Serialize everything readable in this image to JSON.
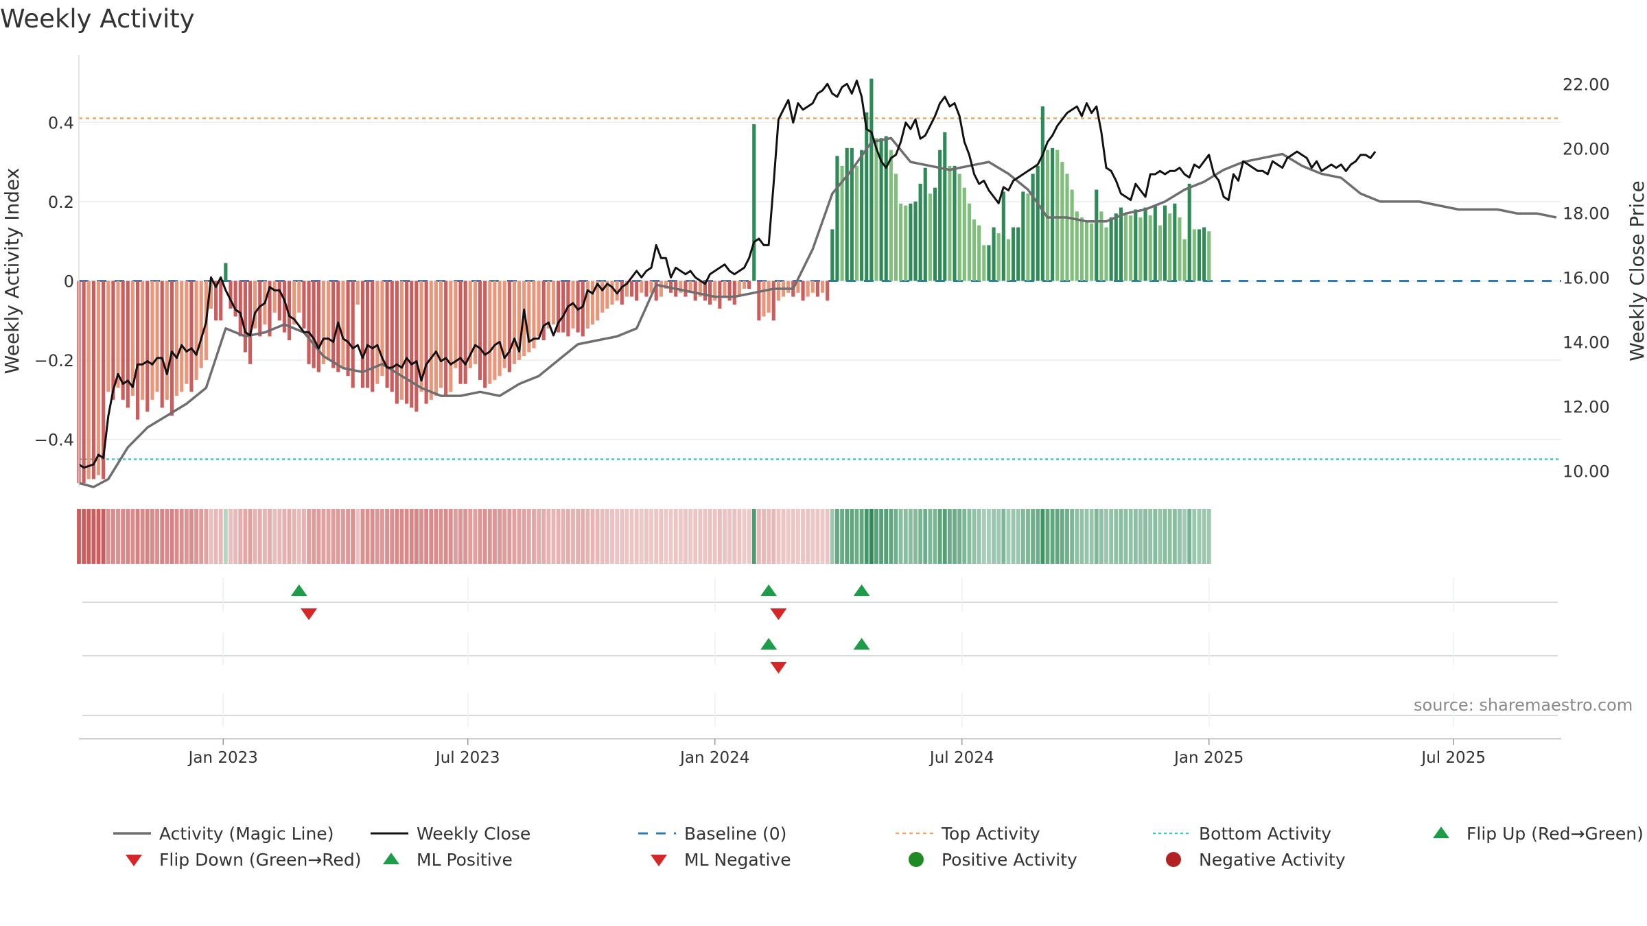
{
  "chart_data": {
    "type": "bar",
    "title": "Weekly Activity",
    "ylabel_left": "Weekly Activity Index",
    "ylabel_right": "Weekly Close Price",
    "ylim_left": [
      -0.52,
      0.57
    ],
    "ylim_right": [
      9.5,
      22.9
    ],
    "left_ticks": [
      {
        "value": 0.4,
        "label": "0.4"
      },
      {
        "value": 0.2,
        "label": "0.2"
      },
      {
        "value": 0,
        "label": "0"
      },
      {
        "value": -0.2,
        "label": "−0.2"
      },
      {
        "value": -0.4,
        "label": "−0.4"
      }
    ],
    "right_ticks": [
      {
        "value": 22,
        "label": "22.00"
      },
      {
        "value": 20,
        "label": "20.00"
      },
      {
        "value": 18,
        "label": "18.00"
      },
      {
        "value": 16,
        "label": "16.00"
      },
      {
        "value": 14,
        "label": "14.00"
      },
      {
        "value": 12,
        "label": "12.00"
      },
      {
        "value": 10,
        "label": "10.00"
      }
    ],
    "x_ticks": [
      {
        "week": 29.5,
        "label": "Jan 2023"
      },
      {
        "week": 79.5,
        "label": "Jul 2023"
      },
      {
        "week": 130,
        "label": "Jan 2024"
      },
      {
        "week": 180.5,
        "label": "Jul 2024"
      },
      {
        "week": 231,
        "label": "Jan 2025"
      },
      {
        "week": 281,
        "label": "Jul 2025"
      }
    ],
    "x_range_weeks": [
      0,
      303
    ],
    "top_activity": 0.41,
    "bottom_activity": -0.45,
    "activity": [
      -0.51,
      -0.51,
      -0.5,
      -0.5,
      -0.49,
      -0.5,
      -0.28,
      -0.3,
      -0.27,
      -0.3,
      -0.32,
      -0.29,
      -0.35,
      -0.3,
      -0.33,
      -0.3,
      -0.28,
      -0.32,
      -0.3,
      -0.34,
      -0.29,
      -0.28,
      -0.26,
      -0.28,
      -0.25,
      -0.22,
      -0.2,
      -0.07,
      -0.1,
      -0.1,
      0.045,
      -0.07,
      -0.09,
      -0.14,
      -0.18,
      -0.21,
      -0.12,
      -0.14,
      -0.11,
      -0.14,
      -0.08,
      -0.1,
      -0.13,
      -0.15,
      -0.11,
      -0.08,
      -0.12,
      -0.21,
      -0.22,
      -0.23,
      -0.21,
      -0.2,
      -0.22,
      -0.23,
      -0.22,
      -0.24,
      -0.27,
      -0.06,
      -0.27,
      -0.27,
      -0.28,
      -0.26,
      -0.24,
      -0.27,
      -0.28,
      -0.31,
      -0.3,
      -0.31,
      -0.32,
      -0.33,
      -0.28,
      -0.31,
      -0.3,
      -0.29,
      -0.27,
      -0.29,
      -0.28,
      -0.22,
      -0.26,
      -0.26,
      -0.22,
      -0.21,
      -0.25,
      -0.27,
      -0.26,
      -0.25,
      -0.24,
      -0.22,
      -0.23,
      -0.21,
      -0.2,
      -0.19,
      -0.18,
      -0.17,
      -0.14,
      -0.15,
      -0.12,
      -0.11,
      -0.13,
      -0.13,
      -0.14,
      -0.12,
      -0.13,
      -0.14,
      -0.12,
      -0.11,
      -0.1,
      -0.08,
      -0.07,
      -0.06,
      -0.05,
      -0.06,
      -0.04,
      -0.04,
      -0.05,
      -0.03,
      -0.04,
      -0.03,
      -0.05,
      -0.04,
      -0.02,
      -0.03,
      -0.04,
      -0.03,
      -0.04,
      -0.03,
      -0.05,
      -0.04,
      -0.05,
      -0.06,
      -0.05,
      -0.07,
      -0.04,
      -0.05,
      -0.06,
      -0.04,
      -0.02,
      -0.02,
      0.395,
      -0.1,
      -0.09,
      -0.08,
      -0.1,
      -0.05,
      -0.04,
      -0.03,
      -0.04,
      -0.03,
      -0.05,
      -0.04,
      -0.03,
      -0.04,
      -0.03,
      -0.05,
      0.13,
      0.315,
      0.29,
      0.335,
      0.335,
      0.29,
      0.33,
      0.425,
      0.51,
      0.36,
      0.36,
      0.365,
      0.33,
      0.27,
      0.195,
      0.19,
      0.195,
      0.2,
      0.245,
      0.285,
      0.22,
      0.235,
      0.33,
      0.375,
      0.29,
      0.29,
      0.27,
      0.235,
      0.195,
      0.155,
      0.14,
      0.09,
      0.09,
      0.135,
      0.12,
      0.225,
      0.105,
      0.135,
      0.135,
      0.225,
      0.22,
      0.27,
      0.29,
      0.44,
      0.33,
      0.335,
      0.33,
      0.3,
      0.27,
      0.23,
      0.175,
      0.16,
      0.15,
      0.145,
      0.23,
      0.175,
      0.135,
      0.16,
      0.17,
      0.185,
      0.17,
      0.165,
      0.18,
      0.16,
      0.185,
      0.165,
      0.19,
      0.14,
      0.19,
      0.17,
      0.195,
      0.16,
      0.105,
      0.245,
      0.13,
      0.13,
      0.135,
      0.125
    ],
    "close": [
      10.2,
      10.1,
      10.15,
      10.2,
      10.5,
      10.4,
      11.7,
      12.5,
      13.0,
      12.7,
      12.8,
      12.6,
      13.3,
      13.3,
      13.4,
      13.3,
      13.5,
      13.5,
      13.0,
      13.7,
      13.5,
      13.9,
      13.7,
      13.8,
      13.6,
      14.1,
      14.6,
      16.0,
      15.7,
      16.0,
      15.6,
      15.3,
      15.0,
      14.9,
      14.3,
      14.2,
      14.9,
      15.1,
      15.2,
      15.7,
      15.6,
      15.6,
      15.3,
      14.8,
      14.7,
      14.5,
      14.3,
      14.3,
      14.1,
      13.8,
      14.1,
      14.1,
      14.0,
      14.6,
      14.1,
      14.0,
      13.8,
      13.9,
      13.5,
      13.9,
      13.8,
      13.9,
      13.5,
      13.2,
      13.2,
      13.3,
      13.2,
      13.5,
      13.3,
      13.4,
      12.8,
      13.3,
      13.5,
      13.7,
      13.4,
      13.5,
      13.3,
      13.4,
      13.5,
      13.3,
      13.6,
      13.9,
      13.8,
      13.6,
      13.7,
      13.9,
      14.0,
      13.5,
      13.7,
      14.1,
      13.7,
      15.0,
      14.0,
      14.1,
      14.1,
      14.5,
      14.6,
      14.2,
      14.6,
      14.8,
      15.1,
      15.2,
      15.0,
      15.1,
      15.6,
      15.5,
      15.8,
      15.6,
      15.8,
      15.7,
      15.5,
      15.7,
      15.8,
      16.0,
      16.2,
      16.0,
      16.2,
      16.3,
      17.0,
      16.6,
      16.6,
      16.0,
      16.3,
      16.2,
      16.1,
      16.2,
      16.0,
      15.9,
      15.8,
      16.1,
      16.2,
      16.3,
      16.4,
      16.2,
      16.1,
      16.2,
      16.3,
      16.6,
      17.1,
      17.2,
      17.0,
      17.0,
      18.9,
      20.9,
      21.2,
      21.5,
      20.8,
      21.4,
      21.2,
      21.3,
      21.4,
      21.7,
      21.8,
      22.0,
      21.7,
      21.6,
      21.9,
      22.0,
      21.7,
      22.1,
      21.6,
      20.6,
      20.5,
      20.0,
      19.6,
      19.4,
      19.7,
      19.8,
      20.2,
      20.8,
      20.6,
      20.9,
      20.3,
      20.4,
      20.7,
      21.0,
      21.4,
      21.6,
      21.3,
      21.4,
      21.0,
      20.2,
      19.8,
      19.2,
      18.9,
      19.0,
      18.7,
      18.5,
      18.3,
      18.8,
      18.7,
      19.0,
      19.1,
      19.2,
      19.3,
      19.4,
      19.5,
      19.8,
      20.2,
      20.4,
      20.7,
      20.9,
      21.1,
      21.2,
      21.3,
      21.0,
      21.4,
      21.1,
      21.3,
      20.5,
      19.4,
      19.3,
      19.0,
      18.6,
      18.5,
      18.4,
      18.9,
      18.7,
      18.5,
      19.2,
      19.2,
      19.3,
      19.2,
      19.3,
      19.3,
      19.4,
      19.2,
      19.1,
      19.5,
      19.4,
      19.6,
      19.8,
      19.2,
      19.0,
      18.5,
      18.4,
      19.2,
      19.0,
      19.6,
      19.5,
      19.4,
      19.3,
      19.3,
      19.2,
      19.6,
      19.5,
      19.4,
      19.7,
      19.8,
      19.9,
      19.8,
      19.7,
      19.4,
      19.6,
      19.3,
      19.4,
      19.5,
      19.4,
      19.5,
      19.3,
      19.5,
      19.6,
      19.8,
      19.8,
      19.7,
      19.9
    ],
    "magic_line_weeks": [
      0,
      3,
      6,
      10,
      14,
      18,
      22,
      26,
      30,
      34,
      38,
      42,
      46,
      50,
      54,
      58,
      62,
      66,
      70,
      74,
      78,
      82,
      86,
      90,
      94,
      98,
      102,
      106,
      110,
      114,
      118,
      122,
      126,
      130,
      134,
      138,
      142,
      146,
      150,
      154,
      158,
      162,
      166,
      170,
      174,
      178,
      182,
      186,
      190,
      194,
      198,
      202,
      206,
      210,
      214,
      218,
      222,
      226,
      230,
      234,
      238,
      242,
      246,
      250,
      254,
      258,
      262,
      266,
      270,
      274,
      278,
      282,
      286,
      290,
      294,
      298,
      302
    ],
    "magic_line_values": [
      -0.51,
      -0.52,
      -0.5,
      -0.42,
      -0.37,
      -0.34,
      -0.31,
      -0.27,
      -0.12,
      -0.14,
      -0.13,
      -0.11,
      -0.13,
      -0.19,
      -0.22,
      -0.23,
      -0.21,
      -0.24,
      -0.27,
      -0.29,
      -0.29,
      -0.28,
      -0.29,
      -0.26,
      -0.24,
      -0.2,
      -0.16,
      -0.15,
      -0.14,
      -0.12,
      -0.01,
      -0.02,
      -0.03,
      -0.04,
      -0.04,
      -0.03,
      -0.02,
      -0.02,
      0.08,
      0.22,
      0.28,
      0.35,
      0.36,
      0.3,
      0.29,
      0.28,
      0.29,
      0.3,
      0.27,
      0.23,
      0.16,
      0.16,
      0.15,
      0.15,
      0.17,
      0.18,
      0.2,
      0.23,
      0.25,
      0.28,
      0.3,
      0.31,
      0.32,
      0.29,
      0.27,
      0.26,
      0.22,
      0.2,
      0.2,
      0.2,
      0.19,
      0.18,
      0.18,
      0.18,
      0.17,
      0.17,
      0.16
    ],
    "flip_up": [
      45,
      141,
      160
    ],
    "flip_down": [
      47,
      143
    ],
    "ml_positive": [
      141,
      160
    ],
    "ml_negative": [
      143
    ],
    "source": "source: sharemaestro.com"
  },
  "colors": {
    "green_dark": "#2e8b57",
    "green_light": "#7fbf7b",
    "red_dark": "#cd5c5c",
    "red_light": "#e9967a",
    "close_line": "#111111",
    "magic_line": "#6e6e70",
    "baseline": "#2a7bb6",
    "top_line": "#f4a460",
    "bottom_line": "#40c4c4",
    "marker_green": "#1e9c4a",
    "marker_red": "#d62728",
    "grid": "#e8ecef"
  },
  "legend": [
    {
      "label": "Activity (Magic Line)",
      "symbol": "line-gray"
    },
    {
      "label": "Weekly Close",
      "symbol": "line-black"
    },
    {
      "label": "Baseline (0)",
      "symbol": "dash-blue"
    },
    {
      "label": "Top Activity",
      "symbol": "dot-orange"
    },
    {
      "label": "Bottom Activity",
      "symbol": "dot-cyan"
    },
    {
      "label": "Flip Up (Red→Green)",
      "symbol": "tri-up-green"
    },
    {
      "label": "Flip Down (Green→Red)",
      "symbol": "tri-down-red"
    },
    {
      "label": "ML Positive",
      "symbol": "tri-up-green"
    },
    {
      "label": "ML Negative",
      "symbol": "tri-down-red"
    },
    {
      "label": "Positive Activity",
      "symbol": "circle-green"
    },
    {
      "label": "Negative Activity",
      "symbol": "circle-red"
    }
  ]
}
